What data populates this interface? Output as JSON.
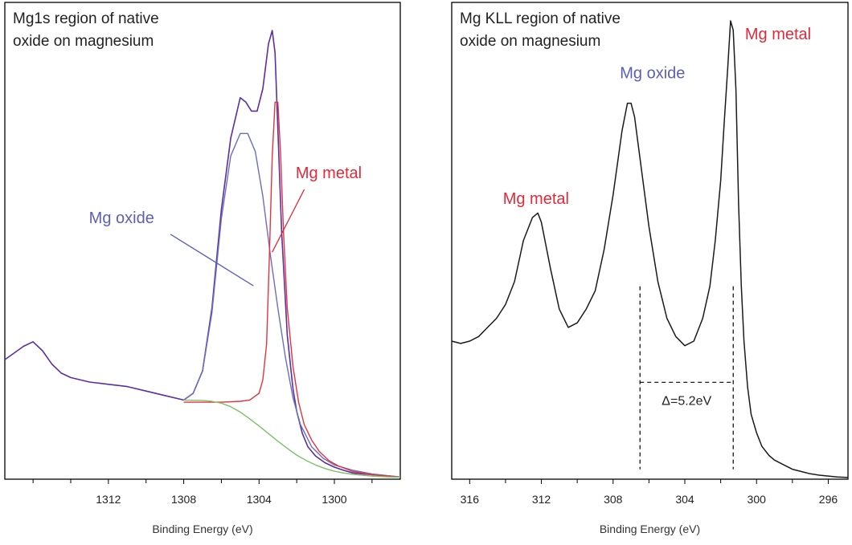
{
  "colors": {
    "frame": "#000000",
    "envelope": "#5a2fa0",
    "oxide": "#6a6ec0",
    "metal": "#e2333f",
    "background_fit": "#7dc06a",
    "spectrum": "#1a1a1a",
    "annot_oxide": "#5b5fb8",
    "annot_metal": "#e02a3a"
  },
  "chart_data": [
    {
      "type": "line",
      "title": [
        "Mg1s region of native",
        "oxide on magnesium"
      ],
      "xlabel": "Binding Energy (eV)",
      "ylabel": "",
      "x_reversed": true,
      "xlim": [
        1317.5,
        1296.5
      ],
      "ylim": [
        0,
        1
      ],
      "xticks": [
        1312,
        1308,
        1304,
        1300
      ],
      "xtick_labels": [
        "1312",
        "1308",
        "1304",
        "1300"
      ],
      "minor_ticks": [
        1316,
        1314,
        1310,
        1306,
        1302,
        1298
      ],
      "grid": false,
      "series": [
        {
          "key": "envelope",
          "x": [
            1317.5,
            1316.5,
            1316,
            1315.5,
            1315,
            1314.5,
            1314,
            1313,
            1312,
            1311,
            1310,
            1309,
            1308,
            1307.5,
            1307,
            1306.5,
            1306,
            1305.5,
            1305,
            1304.7,
            1304.4,
            1304.1,
            1303.8,
            1303.5,
            1303.3,
            1303.15,
            1303,
            1302.8,
            1302.5,
            1302.2,
            1302,
            1301.7,
            1301.4,
            1301,
            1300.5,
            1300,
            1299.5,
            1299,
            1298,
            1297,
            1296.5
          ],
          "y": [
            0.265,
            0.295,
            0.305,
            0.285,
            0.255,
            0.235,
            0.225,
            0.215,
            0.21,
            0.205,
            0.195,
            0.185,
            0.175,
            0.19,
            0.24,
            0.38,
            0.6,
            0.76,
            0.85,
            0.84,
            0.82,
            0.82,
            0.87,
            0.97,
            1.0,
            0.95,
            0.78,
            0.55,
            0.32,
            0.2,
            0.15,
            0.1,
            0.07,
            0.05,
            0.035,
            0.025,
            0.018,
            0.012,
            0.008,
            0.005,
            0.003
          ]
        },
        {
          "key": "oxide",
          "x": [
            1308,
            1307.5,
            1307,
            1306.5,
            1306,
            1305.5,
            1305,
            1304.6,
            1304.2,
            1303.8,
            1303.4,
            1303,
            1302.6,
            1302.2,
            1301.8,
            1301.2,
            1300.6,
            1300,
            1299,
            1298,
            1296.5
          ],
          "y": [
            0.175,
            0.19,
            0.24,
            0.37,
            0.58,
            0.72,
            0.77,
            0.77,
            0.73,
            0.63,
            0.5,
            0.38,
            0.27,
            0.18,
            0.12,
            0.07,
            0.045,
            0.03,
            0.018,
            0.01,
            0.003
          ]
        },
        {
          "key": "metal",
          "x": [
            1308,
            1306,
            1305,
            1304.5,
            1304,
            1303.8,
            1303.6,
            1303.45,
            1303.3,
            1303.15,
            1303,
            1302.85,
            1302.7,
            1302.5,
            1302.2,
            1301.9,
            1301.6,
            1301.2,
            1300.8,
            1300.3,
            1299.8,
            1299,
            1298,
            1296.5
          ],
          "y": [
            0.17,
            0.17,
            0.172,
            0.175,
            0.19,
            0.22,
            0.3,
            0.5,
            0.72,
            0.84,
            0.84,
            0.72,
            0.55,
            0.38,
            0.25,
            0.17,
            0.12,
            0.085,
            0.06,
            0.04,
            0.028,
            0.015,
            0.008,
            0.003
          ]
        },
        {
          "key": "background_fit",
          "x": [
            1308,
            1307,
            1306.5,
            1306,
            1305.5,
            1305,
            1304.5,
            1304,
            1303.5,
            1303,
            1302.5,
            1302,
            1301.5,
            1301,
            1300.5,
            1300,
            1299.5,
            1299,
            1298,
            1297,
            1296.5
          ],
          "y": [
            0.175,
            0.174,
            0.172,
            0.168,
            0.16,
            0.148,
            0.133,
            0.117,
            0.1,
            0.083,
            0.067,
            0.052,
            0.04,
            0.03,
            0.022,
            0.016,
            0.012,
            0.009,
            0.005,
            0.003,
            0.003
          ]
        }
      ],
      "annotations": [
        {
          "text": "Mg oxide",
          "color": "annot_oxide",
          "text_x": 1311.3,
          "text_y": 0.57,
          "line_from": [
            1308.7,
            0.545
          ],
          "line_to": [
            1304.3,
            0.43
          ]
        },
        {
          "text": "Mg metal",
          "color": "annot_metal",
          "text_x": 1300.3,
          "text_y": 0.67,
          "line_from": [
            1301.6,
            0.645
          ],
          "line_to": [
            1303.3,
            0.505
          ]
        }
      ]
    },
    {
      "type": "line",
      "title": [
        "Mg KLL region of native",
        "oxide on magnesium"
      ],
      "xlabel": "Binding Energy (eV)",
      "ylabel": "",
      "x_reversed": true,
      "xlim": [
        317.0,
        294.9
      ],
      "ylim": [
        0,
        1
      ],
      "xticks": [
        316,
        312,
        308,
        304,
        300,
        296
      ],
      "xtick_labels": [
        "316",
        "312",
        "308",
        "304",
        "300",
        "296"
      ],
      "minor_ticks": [
        314,
        310,
        306,
        302,
        298
      ],
      "grid": false,
      "series": [
        {
          "key": "spectrum",
          "x": [
            317,
            316.5,
            316,
            315.5,
            315,
            314.5,
            314,
            313.5,
            313,
            312.5,
            312.2,
            312,
            311.8,
            311.5,
            311,
            310.5,
            310,
            309.5,
            309,
            308.5,
            308,
            307.5,
            307.2,
            307,
            306.8,
            306.5,
            306,
            305.5,
            305,
            304.5,
            304,
            303.5,
            303,
            302.6,
            302.3,
            302,
            301.8,
            301.6,
            301.45,
            301.3,
            301.15,
            301,
            300.85,
            300.7,
            300.5,
            300.3,
            300,
            299.7,
            299.3,
            299,
            298.5,
            298,
            297.5,
            297,
            296.5,
            296,
            295.5,
            294.9
          ],
          "y": [
            0.3,
            0.295,
            0.3,
            0.31,
            0.33,
            0.35,
            0.38,
            0.43,
            0.52,
            0.57,
            0.58,
            0.56,
            0.52,
            0.46,
            0.37,
            0.33,
            0.34,
            0.37,
            0.41,
            0.5,
            0.62,
            0.76,
            0.82,
            0.82,
            0.79,
            0.7,
            0.55,
            0.43,
            0.35,
            0.31,
            0.29,
            0.3,
            0.35,
            0.42,
            0.52,
            0.65,
            0.78,
            0.9,
            1.0,
            0.98,
            0.85,
            0.6,
            0.42,
            0.3,
            0.2,
            0.14,
            0.1,
            0.07,
            0.05,
            0.04,
            0.03,
            0.02,
            0.015,
            0.01,
            0.007,
            0.005,
            0.003,
            0.002
          ]
        }
      ],
      "annotations": [
        {
          "text": "Mg metal",
          "color": "annot_metal",
          "text_x": 312.3,
          "text_y": 0.6
        },
        {
          "text": "Mg oxide",
          "color": "annot_oxide",
          "text_x": 305.8,
          "text_y": 0.875
        },
        {
          "text": "Mg metal",
          "color": "annot_metal",
          "text_x": 298.8,
          "text_y": 0.96
        }
      ],
      "delta": {
        "label": "Δ=5.2eV",
        "from_x": 306.5,
        "to_x": 301.3,
        "line_y": 0.21,
        "top_y": 0.42,
        "bottom_y": 0.02
      }
    }
  ]
}
